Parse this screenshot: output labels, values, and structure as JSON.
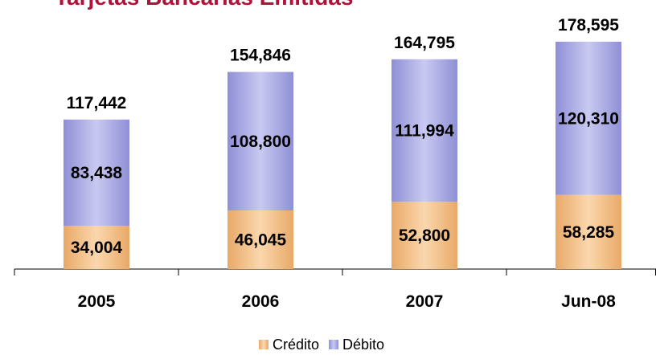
{
  "chart_data": {
    "type": "stacked_bar",
    "title": "Tarjetas Bancarias Emitidas",
    "categories": [
      "2005",
      "2006",
      "2007",
      "Jun-08"
    ],
    "series": [
      {
        "name": "Crédito",
        "color": "#f2c08e",
        "values": [
          34004,
          46045,
          52800,
          58285
        ],
        "value_labels": [
          "34,004",
          "46,045",
          "52,800",
          "58,285"
        ]
      },
      {
        "name": "Débito",
        "color": "#aeaee6",
        "values": [
          83438,
          108800,
          111994,
          120310
        ],
        "value_labels": [
          "83,438",
          "108,800",
          "111,994",
          "120,310"
        ]
      }
    ],
    "totals": {
      "values": [
        117442,
        154846,
        164795,
        178595
      ],
      "value_labels": [
        "117,442",
        "154,846",
        "164,795",
        "178,595"
      ]
    },
    "ylim": [
      0,
      200000
    ],
    "legend": "bottom"
  }
}
